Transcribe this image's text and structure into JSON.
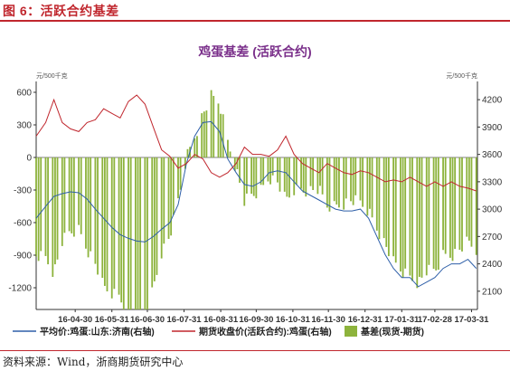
{
  "figure": {
    "title": "图 6：活跃合约基差",
    "source": "资料来源：Wind，浙商期货研究中心"
  },
  "chart_data": {
    "type": "bar+line",
    "title": "鸡蛋基差 (活跃合约)",
    "left_axis": {
      "ylim": [
        -1400,
        700
      ],
      "ticks": [
        600,
        300,
        0,
        -300,
        -600,
        -900,
        -1200
      ],
      "unit_label": "元/500千克"
    },
    "right_axis": {
      "ylim": [
        1900,
        4400
      ],
      "ticks": [
        4200,
        3900,
        3600,
        3300,
        3000,
        2700,
        2400,
        2100
      ],
      "unit_label": "元/500千克"
    },
    "x_tick_labels": [
      "16-04-30",
      "16-05-31",
      "16-06-30",
      "16-07-31",
      "16-08-31",
      "16-09-30",
      "16-10-31",
      "16-11-30",
      "16-12-31",
      "17-01-31",
      "17-02-28",
      "17-03-31"
    ],
    "date_range": [
      "16-03-28",
      "17-04-05"
    ],
    "colors": {
      "spot": "#2e5fa8",
      "futures": "#c0262d",
      "basis": "#8db33c"
    },
    "legend_position": "bottom",
    "series": [
      {
        "name": "平均价:鸡蛋:山东:济南(右轴)",
        "axis": "right",
        "style": "line",
        "points": [
          [
            "16-03-28",
            2900
          ],
          [
            "16-04-05",
            3030
          ],
          [
            "16-04-12",
            3140
          ],
          [
            "16-04-19",
            3170
          ],
          [
            "16-04-26",
            3190
          ],
          [
            "16-05-03",
            3180
          ],
          [
            "16-05-10",
            3110
          ],
          [
            "16-05-17",
            3000
          ],
          [
            "16-05-24",
            2900
          ],
          [
            "16-05-31",
            2800
          ],
          [
            "16-06-07",
            2720
          ],
          [
            "16-06-14",
            2680
          ],
          [
            "16-06-21",
            2650
          ],
          [
            "16-06-28",
            2640
          ],
          [
            "16-07-05",
            2700
          ],
          [
            "16-07-12",
            2780
          ],
          [
            "16-07-19",
            2850
          ],
          [
            "16-07-26",
            3050
          ],
          [
            "16-08-02",
            3500
          ],
          [
            "16-08-09",
            3800
          ],
          [
            "16-08-16",
            3950
          ],
          [
            "16-08-23",
            3960
          ],
          [
            "16-08-30",
            3850
          ],
          [
            "16-09-06",
            3550
          ],
          [
            "16-09-13",
            3400
          ],
          [
            "16-09-20",
            3270
          ],
          [
            "16-09-27",
            3250
          ],
          [
            "16-10-04",
            3300
          ],
          [
            "16-10-11",
            3400
          ],
          [
            "16-10-18",
            3420
          ],
          [
            "16-10-25",
            3400
          ],
          [
            "16-11-01",
            3300
          ],
          [
            "16-11-08",
            3200
          ],
          [
            "16-11-15",
            3150
          ],
          [
            "16-11-22",
            3100
          ],
          [
            "16-11-29",
            3050
          ],
          [
            "16-12-06",
            3000
          ],
          [
            "16-12-13",
            2980
          ],
          [
            "16-12-20",
            2980
          ],
          [
            "16-12-27",
            3000
          ],
          [
            "17-01-03",
            2900
          ],
          [
            "17-01-10",
            2700
          ],
          [
            "17-01-17",
            2500
          ],
          [
            "17-01-24",
            2350
          ],
          [
            "17-01-31",
            2250
          ],
          [
            "17-02-07",
            2250
          ],
          [
            "17-02-14",
            2150
          ],
          [
            "17-02-21",
            2200
          ],
          [
            "17-02-28",
            2250
          ],
          [
            "17-03-07",
            2350
          ],
          [
            "17-03-14",
            2400
          ],
          [
            "17-03-21",
            2400
          ],
          [
            "17-03-28",
            2450
          ],
          [
            "17-04-04",
            2350
          ]
        ]
      },
      {
        "name": "期货收盘价(活跃合约):鸡蛋(右轴)",
        "axis": "right",
        "style": "line",
        "points": [
          [
            "16-03-28",
            3800
          ],
          [
            "16-04-05",
            3950
          ],
          [
            "16-04-12",
            4200
          ],
          [
            "16-04-19",
            3950
          ],
          [
            "16-04-26",
            3880
          ],
          [
            "16-05-03",
            3850
          ],
          [
            "16-05-10",
            3950
          ],
          [
            "16-05-17",
            3980
          ],
          [
            "16-05-24",
            4100
          ],
          [
            "16-05-31",
            4050
          ],
          [
            "16-06-07",
            4000
          ],
          [
            "16-06-14",
            4180
          ],
          [
            "16-06-21",
            4250
          ],
          [
            "16-06-28",
            4150
          ],
          [
            "16-07-05",
            3900
          ],
          [
            "16-07-12",
            3650
          ],
          [
            "16-07-19",
            3580
          ],
          [
            "16-07-26",
            3450
          ],
          [
            "16-08-02",
            3500
          ],
          [
            "16-08-09",
            3600
          ],
          [
            "16-08-16",
            3550
          ],
          [
            "16-08-23",
            3400
          ],
          [
            "16-08-30",
            3350
          ],
          [
            "16-09-06",
            3400
          ],
          [
            "16-09-13",
            3500
          ],
          [
            "16-09-20",
            3680
          ],
          [
            "16-09-27",
            3600
          ],
          [
            "16-10-04",
            3600
          ],
          [
            "16-10-11",
            3580
          ],
          [
            "16-10-18",
            3650
          ],
          [
            "16-10-25",
            3800
          ],
          [
            "16-11-01",
            3600
          ],
          [
            "16-11-08",
            3500
          ],
          [
            "16-11-15",
            3450
          ],
          [
            "16-11-22",
            3400
          ],
          [
            "16-11-29",
            3500
          ],
          [
            "16-12-06",
            3450
          ],
          [
            "16-12-13",
            3400
          ],
          [
            "16-12-20",
            3380
          ],
          [
            "16-12-27",
            3420
          ],
          [
            "17-01-03",
            3400
          ],
          [
            "17-01-10",
            3350
          ],
          [
            "17-01-17",
            3300
          ],
          [
            "17-01-24",
            3320
          ],
          [
            "17-01-31",
            3300
          ],
          [
            "17-02-07",
            3350
          ],
          [
            "17-02-14",
            3300
          ],
          [
            "17-02-21",
            3250
          ],
          [
            "17-02-28",
            3300
          ],
          [
            "17-03-07",
            3250
          ],
          [
            "17-03-14",
            3300
          ],
          [
            "17-03-21",
            3250
          ],
          [
            "17-03-28",
            3230
          ],
          [
            "17-04-04",
            3200
          ]
        ]
      },
      {
        "name": "基差(现货-期货)",
        "axis": "left",
        "style": "bar",
        "points": [
          [
            "16-03-28",
            -900
          ],
          [
            "16-04-05",
            -920
          ],
          [
            "16-04-12",
            -1060
          ],
          [
            "16-04-19",
            -780
          ],
          [
            "16-04-26",
            -690
          ],
          [
            "16-05-03",
            -670
          ],
          [
            "16-05-10",
            -840
          ],
          [
            "16-05-17",
            -980
          ],
          [
            "16-05-24",
            -1200
          ],
          [
            "16-05-31",
            -1250
          ],
          [
            "16-06-07",
            -1280
          ],
          [
            "16-06-14",
            -1500
          ],
          [
            "16-06-21",
            -1600
          ],
          [
            "16-06-28",
            -1510
          ],
          [
            "16-07-05",
            -1200
          ],
          [
            "16-07-12",
            -870
          ],
          [
            "16-07-19",
            -730
          ],
          [
            "16-07-26",
            -400
          ],
          [
            "16-08-02",
            0
          ],
          [
            "16-08-09",
            200
          ],
          [
            "16-08-16",
            400
          ],
          [
            "16-08-23",
            560
          ],
          [
            "16-08-30",
            500
          ],
          [
            "16-09-06",
            150
          ],
          [
            "16-09-13",
            -100
          ],
          [
            "16-09-20",
            -410
          ],
          [
            "16-09-27",
            -350
          ],
          [
            "16-10-04",
            -300
          ],
          [
            "16-10-11",
            -180
          ],
          [
            "16-10-18",
            -230
          ],
          [
            "16-10-25",
            -400
          ],
          [
            "16-11-01",
            -300
          ],
          [
            "16-11-08",
            -300
          ],
          [
            "16-11-15",
            -300
          ],
          [
            "16-11-22",
            -300
          ],
          [
            "16-11-29",
            -450
          ],
          [
            "16-12-06",
            -450
          ],
          [
            "16-12-13",
            -420
          ],
          [
            "16-12-20",
            -400
          ],
          [
            "16-12-27",
            -420
          ],
          [
            "17-01-03",
            -500
          ],
          [
            "17-01-10",
            -650
          ],
          [
            "17-01-17",
            -800
          ],
          [
            "17-01-24",
            -970
          ],
          [
            "17-01-31",
            -1050
          ],
          [
            "17-02-07",
            -1100
          ],
          [
            "17-02-14",
            -1150
          ],
          [
            "17-02-21",
            -1050
          ],
          [
            "17-02-28",
            -1050
          ],
          [
            "17-03-07",
            -900
          ],
          [
            "17-03-14",
            -900
          ],
          [
            "17-03-21",
            -850
          ],
          [
            "17-03-28",
            -780
          ],
          [
            "17-04-04",
            -850
          ]
        ]
      }
    ]
  }
}
